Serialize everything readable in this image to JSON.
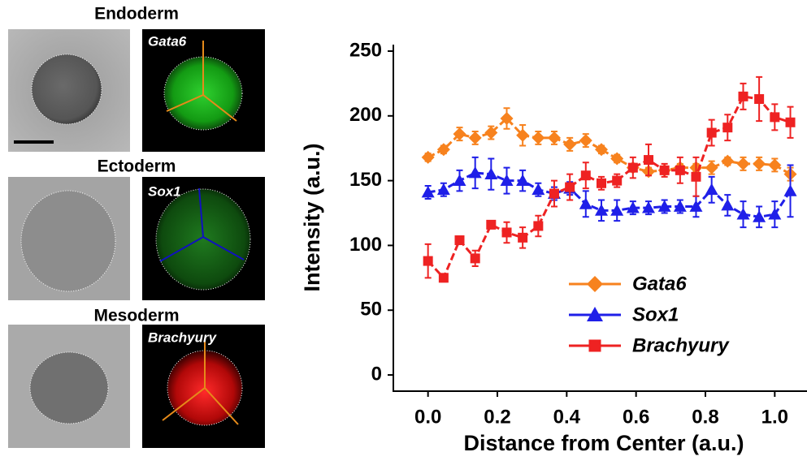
{
  "panels": [
    {
      "title": "Endoderm",
      "stain": "Gata6"
    },
    {
      "title": "Ectoderm",
      "stain": "Sox1"
    },
    {
      "title": "Mesoderm",
      "stain": "Brachyury"
    }
  ],
  "chart_data": {
    "type": "line",
    "xlabel": "Distance from Center (a.u.)",
    "ylabel": "Intensity (a.u.)",
    "x": [
      0,
      0.045,
      0.091,
      0.136,
      0.182,
      0.227,
      0.273,
      0.318,
      0.364,
      0.409,
      0.455,
      0.5,
      0.545,
      0.591,
      0.636,
      0.682,
      0.727,
      0.773,
      0.818,
      0.864,
      0.909,
      0.955,
      1.0,
      1.045
    ],
    "series": [
      {
        "name": "Gata6",
        "color": "#f7821e",
        "marker": "diamond",
        "values": [
          168,
          174,
          186,
          183,
          187,
          198,
          185,
          183,
          183,
          178,
          181,
          174,
          167,
          160,
          157,
          158,
          160,
          160,
          160,
          165,
          163,
          163,
          162,
          155
        ],
        "errors": [
          3,
          3,
          5,
          5,
          5,
          8,
          8,
          5,
          5,
          5,
          5,
          3,
          3,
          3,
          3,
          3,
          3,
          3,
          5,
          3,
          5,
          5,
          5,
          5
        ]
      },
      {
        "name": "Sox1",
        "color": "#1f1fe8",
        "marker": "triangle",
        "values": [
          141,
          143,
          150,
          156,
          155,
          150,
          150,
          143,
          140,
          144,
          132,
          127,
          127,
          129,
          129,
          130,
          130,
          130,
          143,
          131,
          124,
          122,
          124,
          142
        ],
        "errors": [
          5,
          5,
          8,
          12,
          12,
          10,
          8,
          5,
          5,
          5,
          10,
          8,
          8,
          5,
          5,
          5,
          5,
          8,
          10,
          8,
          10,
          8,
          10,
          20
        ]
      },
      {
        "name": "Brachyury",
        "color": "#ee2222",
        "marker": "square",
        "values": [
          88,
          75,
          104,
          90,
          116,
          110,
          106,
          115,
          140,
          145,
          154,
          148,
          150,
          160,
          166,
          158,
          158,
          153,
          187,
          191,
          215,
          213,
          199,
          195
        ],
        "errors": [
          13,
          3,
          3,
          6,
          3,
          8,
          8,
          8,
          10,
          10,
          10,
          5,
          5,
          8,
          12,
          5,
          10,
          15,
          10,
          10,
          10,
          17,
          10,
          12
        ]
      }
    ],
    "xlim": [
      -0.1,
      1.093
    ],
    "ylim": [
      -12.5,
      255
    ],
    "xticks": [
      {
        "value": 0,
        "label": "0.0"
      },
      0.2,
      0.4,
      0.6,
      0.8,
      {
        "value": 1,
        "label": "1.0"
      }
    ],
    "yticks": [
      0,
      50,
      100,
      150,
      200,
      250
    ],
    "legend": "center-right"
  }
}
